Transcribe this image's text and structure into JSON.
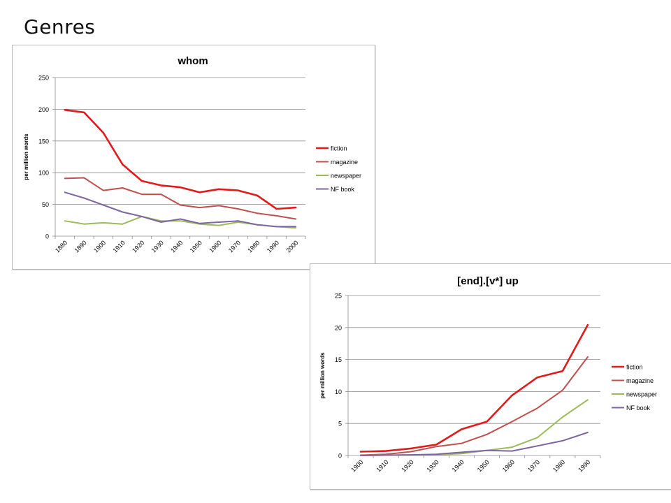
{
  "page": {
    "title": "Genres"
  },
  "chart_data": [
    {
      "type": "line",
      "title": "whom",
      "xlabel": "",
      "ylabel": "per million words",
      "ylim": [
        0,
        250
      ],
      "yticks": [
        0,
        50,
        100,
        150,
        200,
        250
      ],
      "grid": "horizontal",
      "legend_position": "right",
      "categories": [
        "1880",
        "1890",
        "1900",
        "1910",
        "1920",
        "1930",
        "1940",
        "1950",
        "1960",
        "1970",
        "1980",
        "1990",
        "2000"
      ],
      "series": [
        {
          "name": "fiction",
          "color": "#e01b1b",
          "width": 2.6,
          "values": [
            199,
            195,
            163,
            113,
            87,
            80,
            77,
            69,
            74,
            72,
            64,
            43,
            45
          ]
        },
        {
          "name": "magazine",
          "color": "#c0504d",
          "width": 2.0,
          "values": [
            91,
            92,
            72,
            76,
            66,
            66,
            49,
            45,
            48,
            43,
            36,
            32,
            27
          ]
        },
        {
          "name": "newspaper",
          "color": "#9bbb59",
          "width": 2.0,
          "values": [
            24,
            19,
            21,
            19,
            31,
            24,
            24,
            19,
            17,
            22,
            18,
            15,
            13
          ]
        },
        {
          "name": "NF book",
          "color": "#8064a2",
          "width": 2.0,
          "values": [
            69,
            60,
            49,
            38,
            31,
            22,
            27,
            20,
            22,
            24,
            18,
            15,
            15
          ]
        }
      ]
    },
    {
      "type": "line",
      "title": "[end].[v*] up",
      "xlabel": "",
      "ylabel": "per million words",
      "ylim": [
        0,
        25
      ],
      "yticks": [
        0,
        5,
        10,
        15,
        20,
        25
      ],
      "grid": "horizontal",
      "legend_position": "right",
      "categories": [
        "1900",
        "1910",
        "1920",
        "1930",
        "1940",
        "1950",
        "1960",
        "1970",
        "1980",
        "1990"
      ],
      "series": [
        {
          "name": "fiction",
          "color": "#e01b1b",
          "width": 2.6,
          "values": [
            0.6,
            0.7,
            1.1,
            1.7,
            4.1,
            5.3,
            9.4,
            12.2,
            13.2,
            20.4
          ]
        },
        {
          "name": "magazine",
          "color": "#c0504d",
          "width": 2.0,
          "values": [
            0.05,
            0.2,
            0.6,
            1.4,
            1.9,
            3.3,
            5.3,
            7.4,
            10.2,
            15.4
          ]
        },
        {
          "name": "newspaper",
          "color": "#9bbb59",
          "width": 2.0,
          "values": [
            0.0,
            0.05,
            0.1,
            0.1,
            0.3,
            0.8,
            1.3,
            2.8,
            6.0,
            8.7
          ]
        },
        {
          "name": "NF book",
          "color": "#8064a2",
          "width": 2.0,
          "values": [
            0.0,
            0.05,
            0.1,
            0.2,
            0.5,
            0.8,
            0.7,
            1.5,
            2.3,
            3.6
          ]
        }
      ]
    }
  ]
}
